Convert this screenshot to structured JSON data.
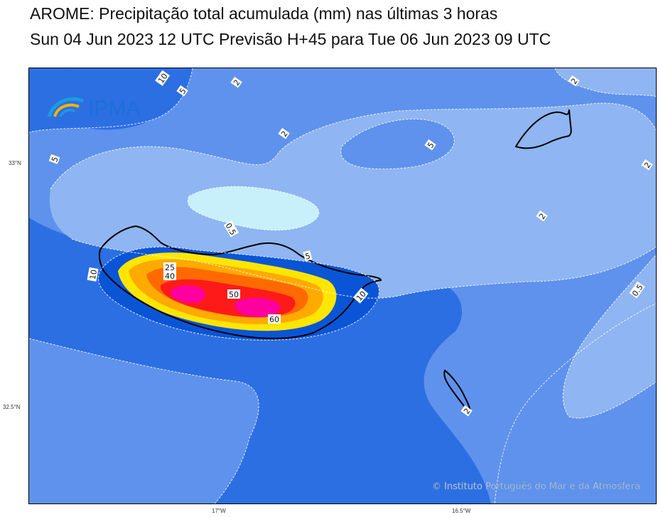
{
  "title": {
    "line1": "AROME: Precipitação total acumulada (mm) nas últimas 3 horas",
    "line2": "Sun 04 Jun 2023 12 UTC Previsão H+45 para Tue 06 Jun 2023 09 UTC"
  },
  "logo": {
    "text": "IPMA"
  },
  "copyright": "© Instituto Português do Mar e da Atmosfera",
  "axes": {
    "lat_labels": [
      "33°N",
      "32.5°N"
    ],
    "lon_labels": [
      "17°W",
      "16.5°W"
    ]
  },
  "contour_levels": {
    "l05": "0.5",
    "l2": "2",
    "l5": "5",
    "l10": "10",
    "l25": "25",
    "l40": "40",
    "l50": "50",
    "l60": "60"
  },
  "colors": {
    "lt0": "#c8f0fa",
    "lt05": "#b4d2f5",
    "c05_2": "#8fb5f2",
    "c2_5": "#5f92ec",
    "c5_10": "#2c6fe2",
    "c10_25": "#0a55d6",
    "c25_30": "#ffe600",
    "c30_35": "#ffaa00",
    "c35_40": "#ff6a00",
    "c40_50": "#ff1a1a",
    "c50_60": "#ff00a0",
    "c60": "#e000ff"
  }
}
